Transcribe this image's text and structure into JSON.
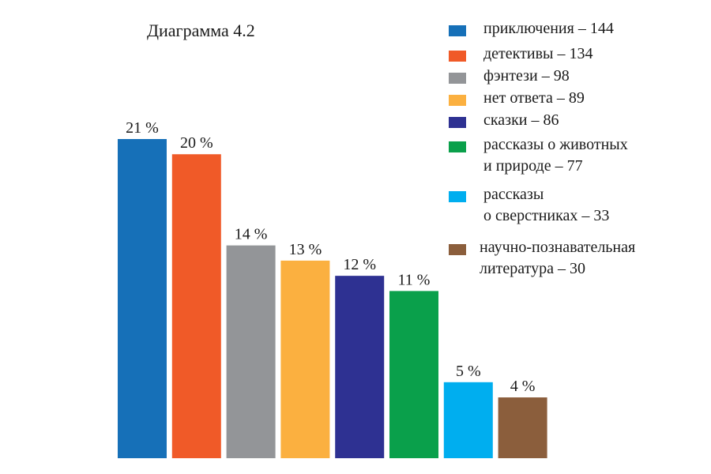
{
  "chart_data": {
    "type": "bar",
    "title": "Диаграмма 4.2",
    "xlabel": "",
    "ylabel": "",
    "ylim": [
      0,
      21
    ],
    "grid": false,
    "legend_position": "right",
    "categories": [
      "приключения",
      "детективы",
      "фэнтези",
      "нет ответа",
      "сказки",
      "рассказы о животных и природе",
      "рассказы о сверстниках",
      "научно-познавательная литература"
    ],
    "values": [
      21,
      20,
      14,
      13,
      12,
      11,
      5,
      4
    ],
    "counts": [
      144,
      134,
      98,
      89,
      86,
      77,
      33,
      30
    ],
    "data_labels": [
      "21 %",
      "20 %",
      "14 %",
      "13 %",
      "12 %",
      "11 %",
      "5 %",
      "4 %"
    ],
    "colors": [
      "#1670b8",
      "#f05a28",
      "#939598",
      "#fbb040",
      "#2e3192",
      "#0aa04b",
      "#00aeef",
      "#8b5e3c"
    ],
    "legend": [
      {
        "lines": [
          "приключения – 144"
        ]
      },
      {
        "lines": [
          "детективы – 134"
        ]
      },
      {
        "lines": [
          "фэнтези – 98"
        ]
      },
      {
        "lines": [
          "нет ответа – 89"
        ]
      },
      {
        "lines": [
          "сказки – 86"
        ]
      },
      {
        "lines": [
          "рассказы о животных",
          "и природе – 77"
        ]
      },
      {
        "lines": [
          "рассказы",
          "о сверстниках – 33"
        ]
      },
      {
        "lines": [
          "научно-познавательная",
          "литература – 30"
        ]
      }
    ]
  }
}
